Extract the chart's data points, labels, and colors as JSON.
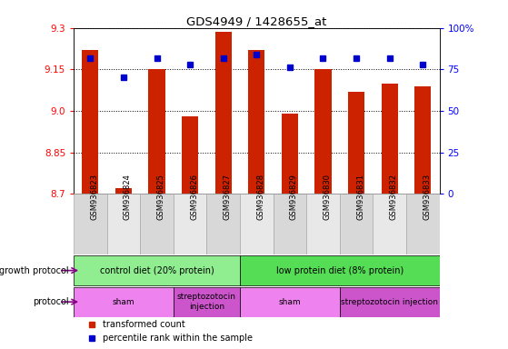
{
  "title": "GDS4949 / 1428655_at",
  "samples": [
    "GSM936823",
    "GSM936824",
    "GSM936825",
    "GSM936826",
    "GSM936827",
    "GSM936828",
    "GSM936829",
    "GSM936830",
    "GSM936831",
    "GSM936832",
    "GSM936833"
  ],
  "bar_values": [
    9.22,
    8.72,
    9.15,
    8.98,
    9.285,
    9.22,
    8.99,
    9.15,
    9.07,
    9.1,
    9.09
  ],
  "dot_values": [
    82,
    70,
    82,
    78,
    82,
    84,
    76,
    82,
    82,
    82,
    78
  ],
  "ylim": [
    8.7,
    9.3
  ],
  "y2lim": [
    0,
    100
  ],
  "yticks": [
    8.7,
    8.85,
    9.0,
    9.15,
    9.3
  ],
  "y2ticks": [
    0,
    25,
    50,
    75,
    100
  ],
  "bar_color": "#cc2200",
  "dot_color": "#0000cc",
  "plot_bg": "#ffffff",
  "growth_protocol_groups": [
    {
      "label": "control diet (20% protein)",
      "start": 0,
      "end": 5,
      "color": "#90ee90"
    },
    {
      "label": "low protein diet (8% protein)",
      "start": 5,
      "end": 11,
      "color": "#55dd55"
    }
  ],
  "protocol_groups": [
    {
      "label": "sham",
      "start": 0,
      "end": 3,
      "color": "#ee82ee"
    },
    {
      "label": "streptozotocin\ninjection",
      "start": 3,
      "end": 5,
      "color": "#cc55cc"
    },
    {
      "label": "sham",
      "start": 5,
      "end": 8,
      "color": "#ee82ee"
    },
    {
      "label": "streptozotocin injection",
      "start": 8,
      "end": 11,
      "color": "#cc55cc"
    }
  ],
  "legend_items": [
    {
      "label": "transformed count",
      "color": "#cc2200"
    },
    {
      "label": "percentile rank within the sample",
      "color": "#0000cc"
    }
  ]
}
